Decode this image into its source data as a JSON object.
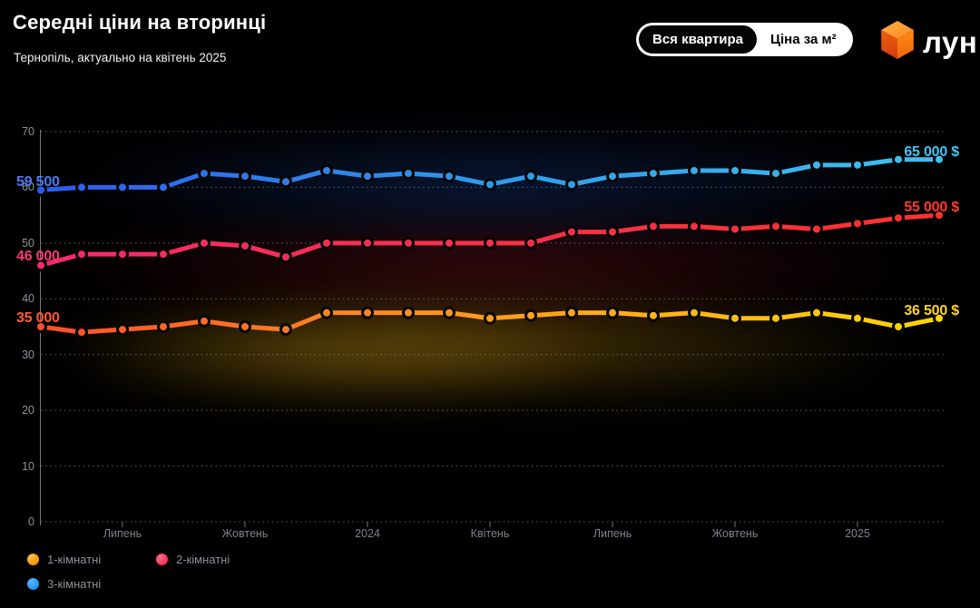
{
  "header": {
    "title": "Середні ціни на вторинці",
    "subtitle": "Тернопіль, актуально на квітень 2025",
    "toggle": {
      "options": [
        "Вся квартира",
        "Ціна за м²"
      ],
      "selected": "Вся квартира"
    },
    "logo_text": "лун"
  },
  "legend": {
    "items": [
      "1-кімнатні",
      "2-кімнатні",
      "3-кімнатні"
    ]
  },
  "chart_data": {
    "type": "line",
    "title": "Середні ціни на вторинці",
    "subtitle": "Тернопіль, актуально на квітень 2025",
    "x_unit": "months, May 2023 – Mar 2025, one point per month",
    "values_unit": "thousands of USD",
    "ylim": [
      0,
      70
    ],
    "y_ticks": [
      0,
      10,
      20,
      30,
      40,
      50,
      60,
      70
    ],
    "grid": "dotted horizontal lines, left vertical axis",
    "legend_position": "bottom-left",
    "x_tick_labels": [
      {
        "index": 2,
        "label": "Липень"
      },
      {
        "index": 5,
        "label": "Жовтень"
      },
      {
        "index": 8,
        "label": "2024"
      },
      {
        "index": 11,
        "label": "Квітень"
      },
      {
        "index": 14,
        "label": "Липень"
      },
      {
        "index": 17,
        "label": "Жовтень"
      },
      {
        "index": 20,
        "label": "2025"
      }
    ],
    "series": [
      {
        "name": "1-кімнатні",
        "values": [
          35,
          34,
          34.5,
          35,
          36,
          35,
          34.5,
          37.5,
          37.5,
          37.5,
          37.5,
          36.5,
          37,
          37.5,
          37.5,
          37,
          37.5,
          36.5,
          36.5,
          37.5,
          36.5,
          35,
          36.5
        ],
        "start_label": "35 000",
        "end_label": "36 500 $",
        "gradient": [
          "#ff4f2d",
          "#ff9d1e",
          "#ffd60a"
        ],
        "start_label_color": "#ff5b31",
        "end_label_color": "#ffd41f"
      },
      {
        "name": "2-кімнатні",
        "values": [
          46,
          48,
          48,
          48,
          50,
          49.5,
          47.5,
          50,
          50,
          50,
          50,
          50,
          50,
          52,
          52,
          53,
          53,
          52.5,
          53,
          52.5,
          53.5,
          54.5,
          55
        ],
        "start_label": "46 000",
        "end_label": "55 000 $",
        "gradient": [
          "#f52a6e",
          "#f73048",
          "#fa322c"
        ],
        "start_label_color": "#fb3a70",
        "end_label_color": "#ff3b30"
      },
      {
        "name": "3-кімнатні",
        "values": [
          59.5,
          60,
          60,
          60,
          62.5,
          62,
          61,
          63,
          62,
          62.5,
          62,
          60.5,
          62,
          60.5,
          62,
          62.5,
          63,
          63,
          62.5,
          64,
          64,
          65,
          65
        ],
        "start_label": "59 500",
        "end_label": "65 000 $",
        "gradient": [
          "#2e5bee",
          "#2f9ae9",
          "#3fc1f0"
        ],
        "start_label_color": "#4a7bf5",
        "end_label_color": "#3ec6f5"
      }
    ]
  }
}
